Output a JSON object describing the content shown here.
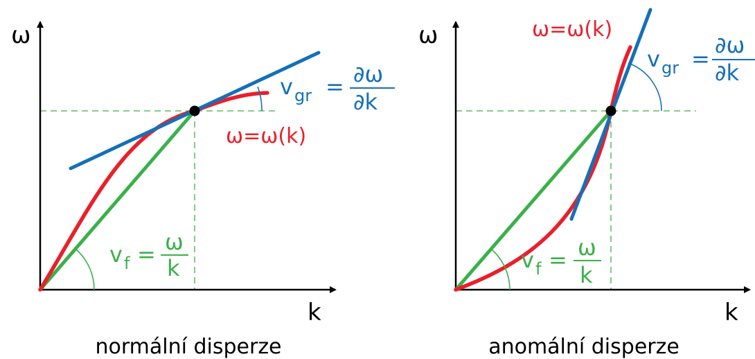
{
  "colors": {
    "axis": "#000000",
    "curve": "#e8202a",
    "tangent": "#1470b8",
    "secant": "#3ab04a",
    "guide": "#3ab04a",
    "point": "#000000"
  },
  "panels": [
    {
      "id": "normal",
      "caption": "normální disperze",
      "y_axis_label": "ω",
      "x_axis_label": "k",
      "curve_label": "ω=ω(k)",
      "group_velocity": {
        "lhs": "v",
        "sub": "gr",
        "eq": "=",
        "num": "∂ω",
        "den": "∂k"
      },
      "phase_velocity": {
        "lhs": "v",
        "sub": "f",
        "eq": "=",
        "num": "ω",
        "den": "k"
      }
    },
    {
      "id": "anomalous",
      "caption": "anomální disperze",
      "y_axis_label": "ω",
      "x_axis_label": "k",
      "curve_label": "ω=ω(k)",
      "group_velocity": {
        "lhs": "v",
        "sub": "gr",
        "eq": "=",
        "num": "∂ω",
        "den": "∂k"
      },
      "phase_velocity": {
        "lhs": "v",
        "sub": "f",
        "eq": "=",
        "num": "ω",
        "den": "k"
      }
    }
  ]
}
